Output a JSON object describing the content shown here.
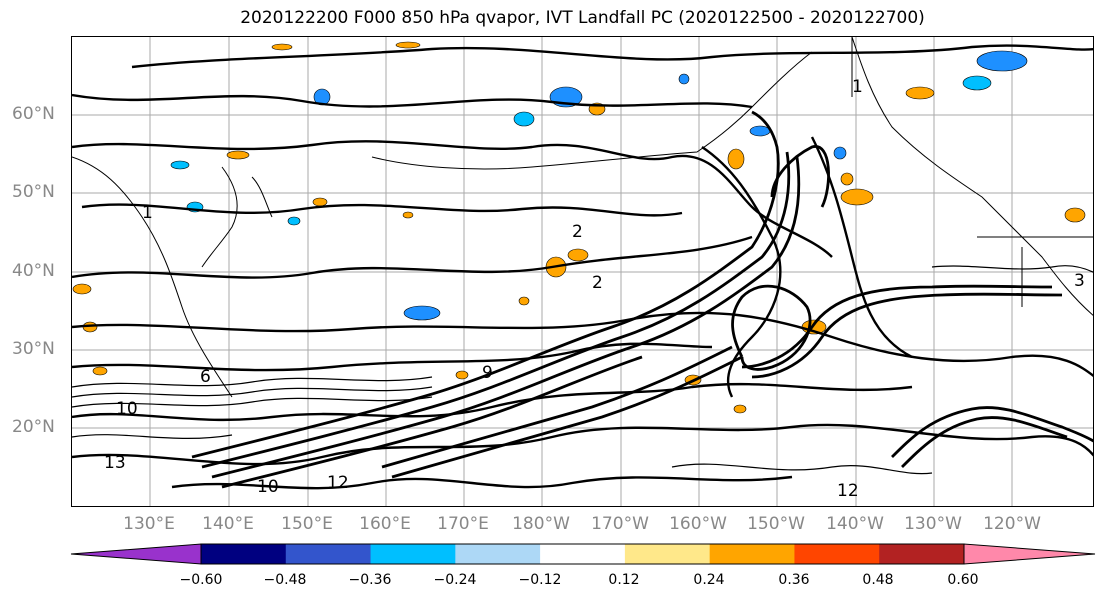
{
  "title": "2020122200 F000 850 hPa qvapor, IVT Landfall PC (2020122500 - 2020122700)",
  "lat_labels": [
    "60°N",
    "50°N",
    "40°N",
    "30°N",
    "20°N"
  ],
  "lon_labels": [
    "130°E",
    "140°E",
    "150°E",
    "160°E",
    "170°E",
    "180°W",
    "170°W",
    "160°W",
    "150°W",
    "140°W",
    "130°W",
    "120°W"
  ],
  "contour_labels": [
    "1",
    "2",
    "2",
    "3",
    "10",
    "12",
    "10",
    "12",
    "13",
    "9",
    "6",
    "1"
  ],
  "colorbar": {
    "ticks": [
      "−0.60",
      "−0.48",
      "−0.36",
      "−0.24",
      "−0.12",
      "0.12",
      "0.24",
      "0.36",
      "0.48",
      "0.60"
    ],
    "colors": [
      "#9932cc",
      "#000080",
      "#3355cc",
      "#00bfff",
      "#add8f6",
      "#ffffff",
      "#ffe88a",
      "#ffa500",
      "#ff4500",
      "#b22222",
      "#ff88aa"
    ]
  },
  "map_colors": {
    "contour": "#000000",
    "grid": "#aaaaaa",
    "positive_fill": "#ffa500",
    "negative_fill": "#1e90ff"
  }
}
